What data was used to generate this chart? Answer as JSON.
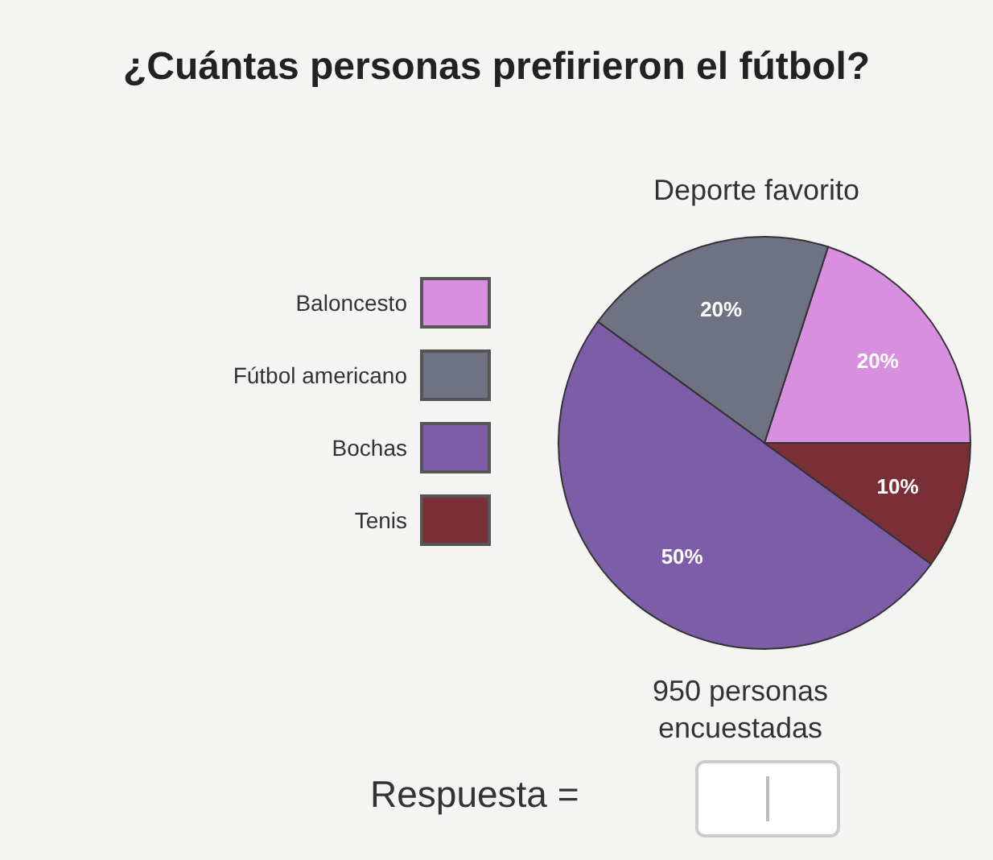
{
  "chart_data": {
    "type": "pie",
    "title": "¿Cuántas personas prefirieron el fútbol?",
    "subtitle": "Deporte favorito",
    "categories": [
      "Baloncesto",
      "Fútbol americano",
      "Bochas",
      "Tenis"
    ],
    "values": [
      20,
      20,
      50,
      10
    ],
    "colors": [
      "#d98fe0",
      "#6f7282",
      "#7d5ca8",
      "#7a2f36"
    ],
    "value_labels": [
      "20%",
      "20%",
      "50%",
      "10%"
    ],
    "legend": "left",
    "annotations": [
      "950 personas encuestadas",
      "Respuesta ="
    ]
  }
}
